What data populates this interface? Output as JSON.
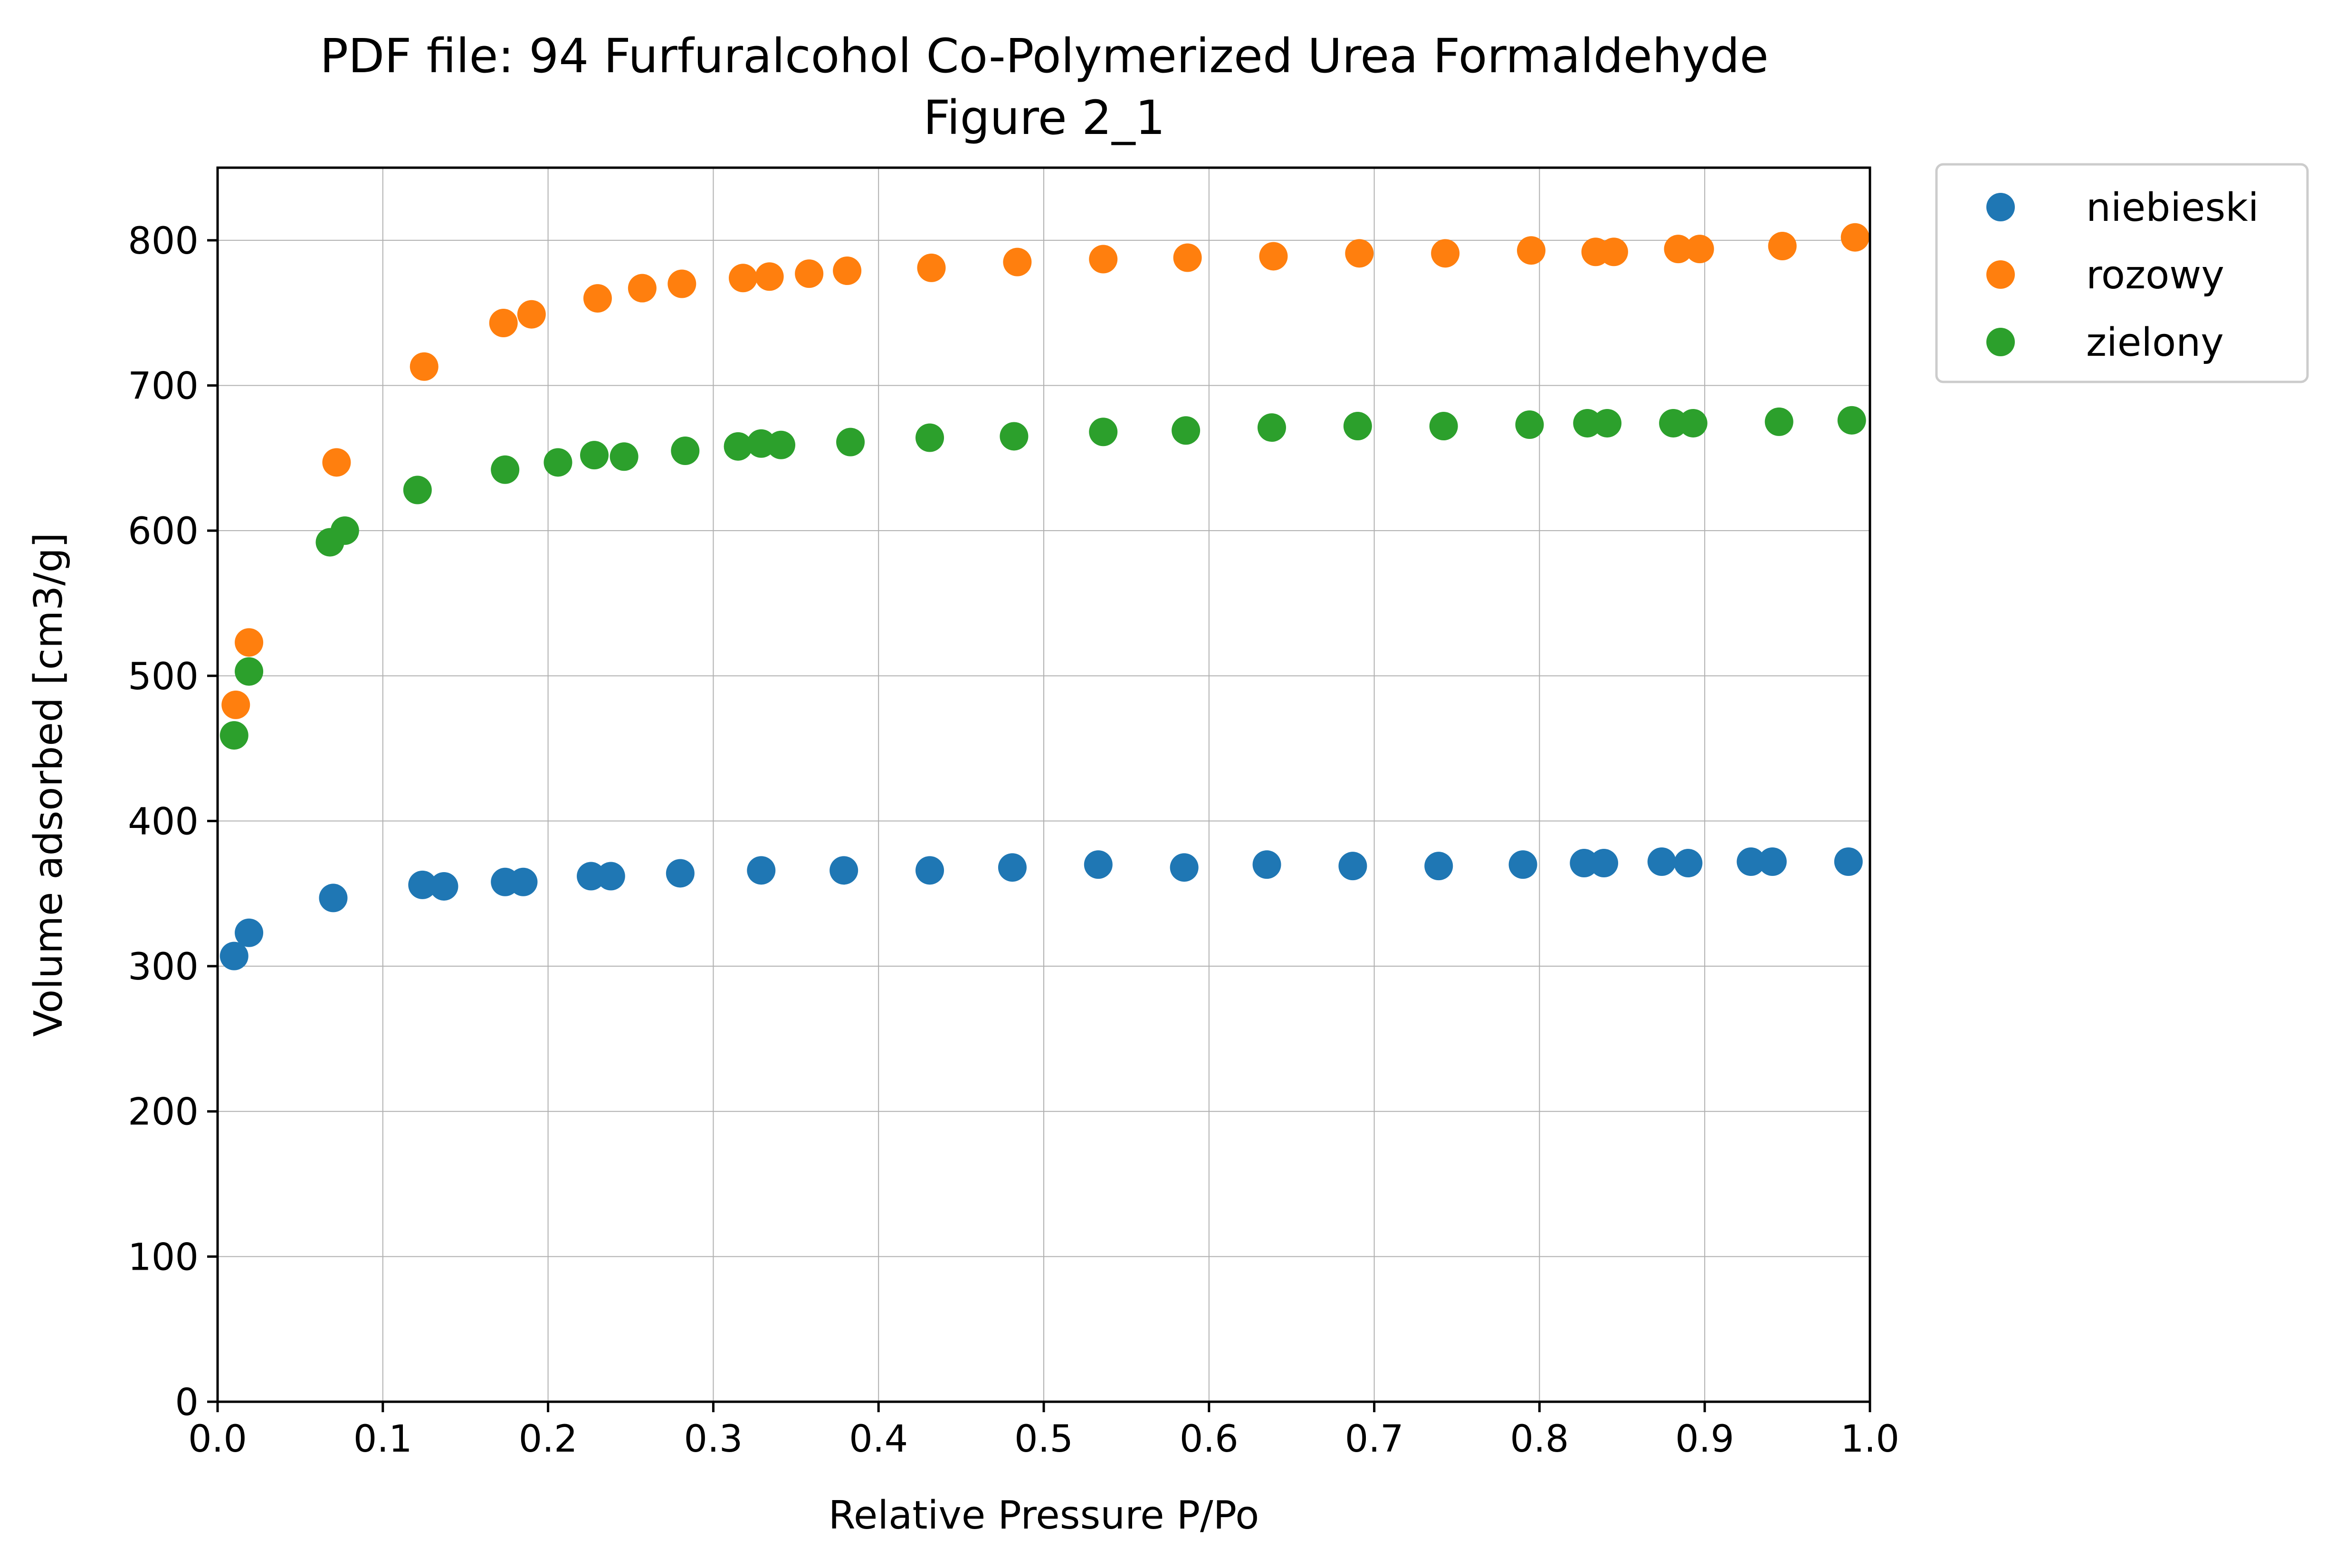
{
  "chart_data": {
    "type": "scatter",
    "title": "PDF file: 94 Furfuralcohol Co-Polymerized Urea Formaldehyde",
    "subtitle": "Figure 2_1",
    "xlabel": "Relative Pressure P/Po",
    "ylabel": "Volume adsorbed [cm3/g]",
    "xlim": [
      0.0,
      1.0
    ],
    "ylim": [
      0,
      850
    ],
    "xticks": [
      "0.0",
      "0.1",
      "0.2",
      "0.3",
      "0.4",
      "0.5",
      "0.6",
      "0.7",
      "0.8",
      "0.9",
      "1.0"
    ],
    "yticks": [
      "0",
      "100",
      "200",
      "300",
      "400",
      "500",
      "600",
      "700",
      "800"
    ],
    "grid": true,
    "legend_position": "outside-top-right",
    "series": [
      {
        "name": "niebieski",
        "color": "#1f77b4",
        "points": [
          [
            0.01,
            307
          ],
          [
            0.019,
            323
          ],
          [
            0.07,
            347
          ],
          [
            0.124,
            356
          ],
          [
            0.137,
            355
          ],
          [
            0.174,
            358
          ],
          [
            0.185,
            358
          ],
          [
            0.226,
            362
          ],
          [
            0.238,
            362
          ],
          [
            0.28,
            364
          ],
          [
            0.329,
            366
          ],
          [
            0.379,
            366
          ],
          [
            0.431,
            366
          ],
          [
            0.481,
            368
          ],
          [
            0.533,
            370
          ],
          [
            0.585,
            368
          ],
          [
            0.635,
            370
          ],
          [
            0.687,
            369
          ],
          [
            0.739,
            369
          ],
          [
            0.79,
            370
          ],
          [
            0.827,
            371
          ],
          [
            0.839,
            371
          ],
          [
            0.874,
            372
          ],
          [
            0.89,
            371
          ],
          [
            0.928,
            372
          ],
          [
            0.941,
            372
          ],
          [
            0.987,
            372
          ]
        ]
      },
      {
        "name": "rozowy",
        "color": "#ff7f0e",
        "points": [
          [
            0.011,
            480
          ],
          [
            0.019,
            523
          ],
          [
            0.072,
            647
          ],
          [
            0.125,
            713
          ],
          [
            0.173,
            743
          ],
          [
            0.19,
            749
          ],
          [
            0.23,
            760
          ],
          [
            0.257,
            767
          ],
          [
            0.281,
            770
          ],
          [
            0.318,
            774
          ],
          [
            0.334,
            775
          ],
          [
            0.358,
            777
          ],
          [
            0.381,
            779
          ],
          [
            0.432,
            781
          ],
          [
            0.484,
            785
          ],
          [
            0.536,
            787
          ],
          [
            0.587,
            788
          ],
          [
            0.639,
            789
          ],
          [
            0.691,
            791
          ],
          [
            0.743,
            791
          ],
          [
            0.795,
            793
          ],
          [
            0.834,
            792
          ],
          [
            0.845,
            792
          ],
          [
            0.884,
            794
          ],
          [
            0.897,
            794
          ],
          [
            0.947,
            796
          ],
          [
            0.991,
            802
          ]
        ]
      },
      {
        "name": "zielony",
        "color": "#2ca02c",
        "points": [
          [
            0.01,
            459
          ],
          [
            0.019,
            503
          ],
          [
            0.068,
            592
          ],
          [
            0.077,
            600
          ],
          [
            0.121,
            628
          ],
          [
            0.174,
            642
          ],
          [
            0.206,
            647
          ],
          [
            0.228,
            652
          ],
          [
            0.246,
            651
          ],
          [
            0.283,
            655
          ],
          [
            0.315,
            658
          ],
          [
            0.329,
            660
          ],
          [
            0.341,
            659
          ],
          [
            0.383,
            661
          ],
          [
            0.431,
            664
          ],
          [
            0.482,
            665
          ],
          [
            0.536,
            668
          ],
          [
            0.586,
            669
          ],
          [
            0.638,
            671
          ],
          [
            0.69,
            672
          ],
          [
            0.742,
            672
          ],
          [
            0.794,
            673
          ],
          [
            0.829,
            674
          ],
          [
            0.841,
            674
          ],
          [
            0.881,
            674
          ],
          [
            0.893,
            674
          ],
          [
            0.945,
            675
          ],
          [
            0.989,
            676
          ]
        ]
      }
    ]
  }
}
